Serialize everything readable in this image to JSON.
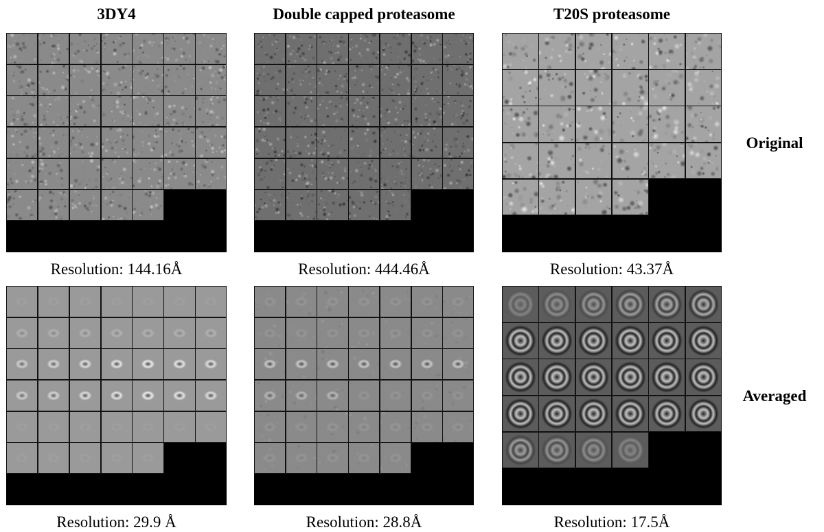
{
  "columns": [
    {
      "title": "3DY4",
      "rows": 6,
      "cols": 7,
      "tiles_orig": 40,
      "tiles_avg": 40,
      "kind": "a"
    },
    {
      "title": "Double capped proteasome",
      "rows": 6,
      "cols": 7,
      "tiles_orig": 40,
      "tiles_avg": 40,
      "kind": "b"
    },
    {
      "title": "T20S proteasome",
      "rows": 5,
      "cols": 6,
      "tiles_orig": 28,
      "tiles_avg": 28,
      "kind": "c"
    }
  ],
  "row_labels": {
    "original": "Original",
    "averaged": "Averaged"
  },
  "resolutions": {
    "original": [
      "Resolution: 144.16Å",
      "Resolution: 444.46Å",
      "Resolution: 43.37Å"
    ],
    "averaged": [
      "Resolution: 29.9 Å",
      "Resolution: 28.8Å",
      "Resolution: 17.5Å"
    ]
  }
}
